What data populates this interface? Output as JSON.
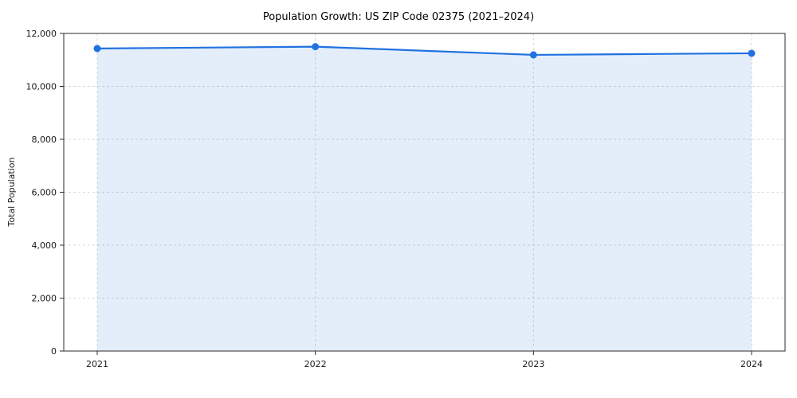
{
  "chart_data": {
    "type": "area",
    "title": "Population Growth: US ZIP Code 02375 (2021–2024)",
    "xlabel": "",
    "ylabel": "Total Population",
    "x": [
      2021,
      2022,
      2023,
      2024
    ],
    "series": [
      {
        "name": "Total Population",
        "values": [
          11430,
          11500,
          11190,
          11250
        ]
      }
    ],
    "ylim": [
      0,
      12000
    ],
    "yticks": [
      0,
      2000,
      4000,
      6000,
      8000,
      10000,
      12000
    ],
    "grid": "dashed",
    "legend": "none",
    "colors": {
      "line": "#2172e0",
      "marker": "#2172e0",
      "fill": "#2172e0",
      "fill_opacity": 0.12,
      "grid": "#d9d9d9",
      "axis": "#2b2b2b",
      "background": "#ffffff"
    }
  }
}
